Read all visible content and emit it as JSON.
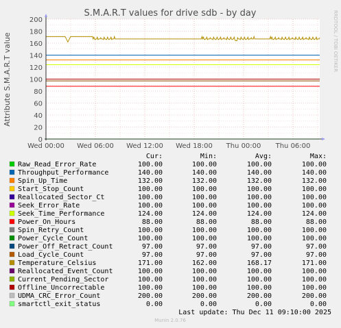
{
  "chart_data": {
    "type": "line",
    "title": "S.M.A.R.T values for drive sdb - by day",
    "ylabel": "Attribute S.M.A.R.T value",
    "watermark": "RRDTOOL / TOBI OETIKER",
    "ylim": [
      0,
      200
    ],
    "y_ticks": [
      "0",
      "20",
      "40",
      "60",
      "80",
      "100",
      "120",
      "140",
      "160",
      "180",
      "200"
    ],
    "x_ticks": [
      "Wed 00:00",
      "Wed 06:00",
      "Wed 12:00",
      "Wed 18:00",
      "Thu 00:00",
      "Thu 06:00"
    ],
    "legend_headers": [
      "Cur:",
      "Min:",
      "Avg:",
      "Max:"
    ],
    "series": [
      {
        "name": "Raw_Read_Error_Rate",
        "color": "#00cc00",
        "cur": "100.00",
        "min": "100.00",
        "avg": "100.00",
        "max": "100.00",
        "value": 100
      },
      {
        "name": "Throughput_Performance",
        "color": "#0066b3",
        "cur": "140.00",
        "min": "140.00",
        "avg": "140.00",
        "max": "140.00",
        "value": 140
      },
      {
        "name": "Spin_Up_Time",
        "color": "#ff8000",
        "cur": "132.00",
        "min": "132.00",
        "avg": "132.00",
        "max": "132.00",
        "value": 132
      },
      {
        "name": "Start_Stop_Count",
        "color": "#ffcc00",
        "cur": "100.00",
        "min": "100.00",
        "avg": "100.00",
        "max": "100.00",
        "value": 100
      },
      {
        "name": "Reallocated_Sector_Ct",
        "color": "#330099",
        "cur": "100.00",
        "min": "100.00",
        "avg": "100.00",
        "max": "100.00",
        "value": 100
      },
      {
        "name": "Seek_Error_Rate",
        "color": "#990099",
        "cur": "100.00",
        "min": "100.00",
        "avg": "100.00",
        "max": "100.00",
        "value": 100
      },
      {
        "name": "Seek_Time_Performance",
        "color": "#ccff00",
        "cur": "124.00",
        "min": "124.00",
        "avg": "124.00",
        "max": "124.00",
        "value": 124
      },
      {
        "name": "Power_On_Hours",
        "color": "#ff0000",
        "cur": "88.00",
        "min": "88.00",
        "avg": "88.00",
        "max": "88.00",
        "value": 88
      },
      {
        "name": "Spin_Retry_Count",
        "color": "#808080",
        "cur": "100.00",
        "min": "100.00",
        "avg": "100.00",
        "max": "100.00",
        "value": 100
      },
      {
        "name": "Power_Cycle_Count",
        "color": "#008f00",
        "cur": "100.00",
        "min": "100.00",
        "avg": "100.00",
        "max": "100.00",
        "value": 100
      },
      {
        "name": "Power_Off_Retract_Count",
        "color": "#00487d",
        "cur": "97.00",
        "min": "97.00",
        "avg": "97.00",
        "max": "97.00",
        "value": 97
      },
      {
        "name": "Load_Cycle_Count",
        "color": "#b35a00",
        "cur": "97.00",
        "min": "97.00",
        "avg": "97.00",
        "max": "97.00",
        "value": 97
      },
      {
        "name": "Temperature_Celsius",
        "color": "#b38f00",
        "cur": "171.00",
        "min": "162.00",
        "avg": "168.17",
        "max": "171.00",
        "value": 171
      },
      {
        "name": "Reallocated_Event_Count",
        "color": "#6b006b",
        "cur": "100.00",
        "min": "100.00",
        "avg": "100.00",
        "max": "100.00",
        "value": 100
      },
      {
        "name": "Current_Pending_Sector",
        "color": "#8fb300",
        "cur": "100.00",
        "min": "100.00",
        "avg": "100.00",
        "max": "100.00",
        "value": 100
      },
      {
        "name": "Offline_Uncorrectable",
        "color": "#b30000",
        "cur": "100.00",
        "min": "100.00",
        "avg": "100.00",
        "max": "100.00",
        "value": 100
      },
      {
        "name": "UDMA_CRC_Error_Count",
        "color": "#bebebe",
        "cur": "200.00",
        "min": "200.00",
        "avg": "200.00",
        "max": "200.00",
        "value": 200
      },
      {
        "name": "smartctl_exit_status",
        "color": "#80ff80",
        "cur": "0.00",
        "min": "0.00",
        "avg": "0.00",
        "max": "0.00",
        "value": 0
      }
    ],
    "last_update": "Last update: Thu Dec 11 09:10:00 2025",
    "footer": "Munin 2.0.76"
  }
}
